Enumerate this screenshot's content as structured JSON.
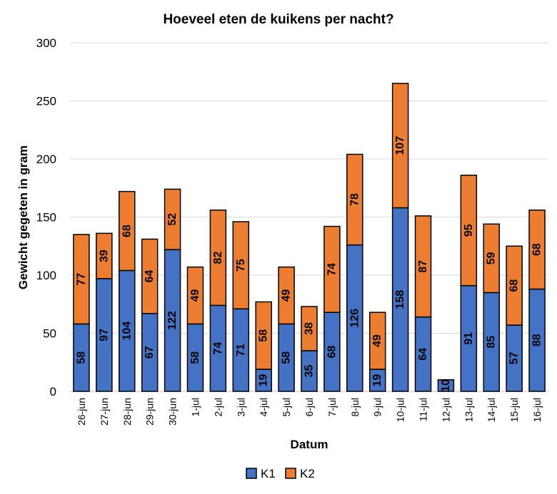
{
  "chart_data": {
    "type": "bar",
    "stacked": true,
    "title": "Hoeveel eten de kuikens per nacht?",
    "xlabel": "Datum",
    "ylabel": "Gewicht gegeten in gram",
    "ylim": [
      0,
      300
    ],
    "yticks": [
      0,
      50,
      100,
      150,
      200,
      250,
      300
    ],
    "grid": true,
    "legend_position": "bottom",
    "categories": [
      "26-jun",
      "27-jun",
      "28-jun",
      "29-jun",
      "30-jun",
      "1-jul",
      "2-jul",
      "3-jul",
      "4-jul",
      "5-jul",
      "6-jul",
      "7-jul",
      "8-jul",
      "9-jul",
      "10-jul",
      "11-jul",
      "12-jul",
      "13-jul",
      "14-jul",
      "15-jul",
      "16-jul"
    ],
    "series": [
      {
        "name": "K1",
        "color": "#4472C4",
        "values": [
          58,
          97,
          104,
          67,
          122,
          58,
          74,
          71,
          19,
          58,
          35,
          68,
          126,
          19,
          158,
          64,
          10,
          91,
          85,
          57,
          88
        ]
      },
      {
        "name": "K2",
        "color": "#ED7D31",
        "values": [
          77,
          39,
          68,
          64,
          52,
          49,
          82,
          75,
          58,
          49,
          38,
          74,
          78,
          49,
          107,
          87,
          null,
          95,
          59,
          68,
          68
        ]
      }
    ]
  }
}
